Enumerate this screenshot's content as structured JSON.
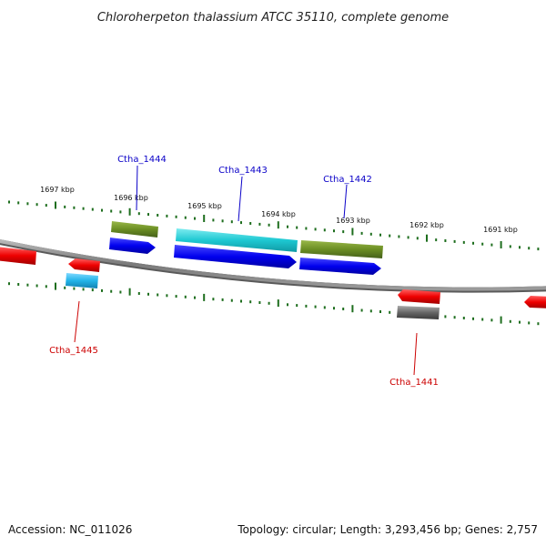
{
  "title": "Chloroherpeton thalassium ATCC 35110, complete genome",
  "kbp_labels": [
    "1697 kbp",
    "1696 kbp",
    "1695 kbp",
    "1694 kbp",
    "1693 kbp",
    "1692 kbp",
    "1691 kbp"
  ],
  "gene_labels": {
    "ctha_1444": "Ctha_1444",
    "ctha_1443": "Ctha_1443",
    "ctha_1442": "Ctha_1442",
    "ctha_1445": "Ctha_1445",
    "ctha_1441": "Ctha_1441"
  },
  "colors": {
    "forward_label": "#0a00c8",
    "reverse_label": "#cc0000",
    "blue_gene": "#0000e6",
    "red_gene": "#ee0000",
    "olive_gene": "#6b8e23",
    "cyan_gene": "#1ec8d2",
    "sky_gene": "#22b4e8",
    "gray_gene": "#666666",
    "tick_green": "#1e6e1e",
    "backbone": "#8c8c8c"
  },
  "footer": {
    "accession": "Accession: NC_011026",
    "topology": "Topology: circular; Length: 3,293,456 bp; Genes: 2,757"
  }
}
